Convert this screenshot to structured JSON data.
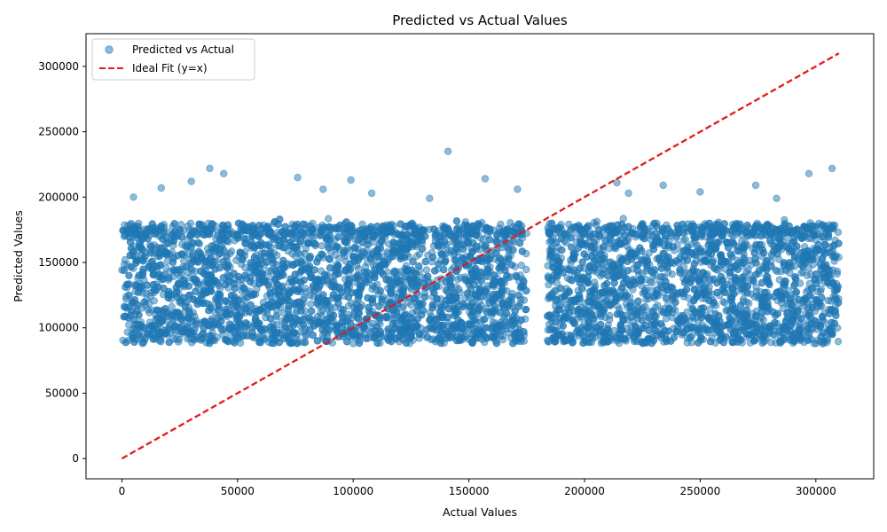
{
  "chart_data": {
    "type": "scatter",
    "title": "Predicted vs Actual Values",
    "xlabel": "Actual Values",
    "ylabel": "Predicted Values",
    "xlim": [
      -15500,
      325000
    ],
    "ylim": [
      -15500,
      325000
    ],
    "xticks": [
      0,
      50000,
      100000,
      150000,
      200000,
      250000,
      300000
    ],
    "yticks": [
      0,
      50000,
      100000,
      150000,
      200000,
      250000,
      300000
    ],
    "grid": false,
    "legend": {
      "placement": "upper-left",
      "entries": [
        {
          "label": "Predicted vs Actual",
          "marker": "circle",
          "color": "#1f77b4"
        },
        {
          "label": "Ideal Fit (y=x)",
          "marker": "dashed-line",
          "color": "#e31a1c"
        }
      ]
    },
    "series": [
      {
        "name": "Predicted vs Actual",
        "kind": "scatter",
        "color": "#1f77b4",
        "opacity": 0.5,
        "x_range": [
          0,
          310000
        ],
        "y_range": [
          88000,
          235000
        ],
        "gap_in_x": [
          175000,
          184000
        ],
        "representative_points": [
          {
            "x": 141000,
            "y": 235000
          },
          {
            "x": 38000,
            "y": 222000
          },
          {
            "x": 307000,
            "y": 222000
          },
          {
            "x": 44000,
            "y": 218000
          },
          {
            "x": 297000,
            "y": 218000
          },
          {
            "x": 76000,
            "y": 215000
          },
          {
            "x": 157000,
            "y": 214000
          },
          {
            "x": 99000,
            "y": 213000
          },
          {
            "x": 30000,
            "y": 212000
          },
          {
            "x": 214000,
            "y": 211000
          },
          {
            "x": 274000,
            "y": 209000
          },
          {
            "x": 234000,
            "y": 209000
          },
          {
            "x": 17000,
            "y": 207000
          },
          {
            "x": 171000,
            "y": 206000
          },
          {
            "x": 87000,
            "y": 206000
          },
          {
            "x": 250000,
            "y": 204000
          },
          {
            "x": 219000,
            "y": 203000
          },
          {
            "x": 108000,
            "y": 203000
          },
          {
            "x": 5000,
            "y": 200000
          },
          {
            "x": 133000,
            "y": 199000
          },
          {
            "x": 283000,
            "y": 199000
          }
        ]
      },
      {
        "name": "Ideal Fit (y=x)",
        "kind": "line",
        "style": "dashed",
        "color": "#e31a1c",
        "x": [
          0,
          310000
        ],
        "y": [
          0,
          310000
        ]
      }
    ]
  }
}
